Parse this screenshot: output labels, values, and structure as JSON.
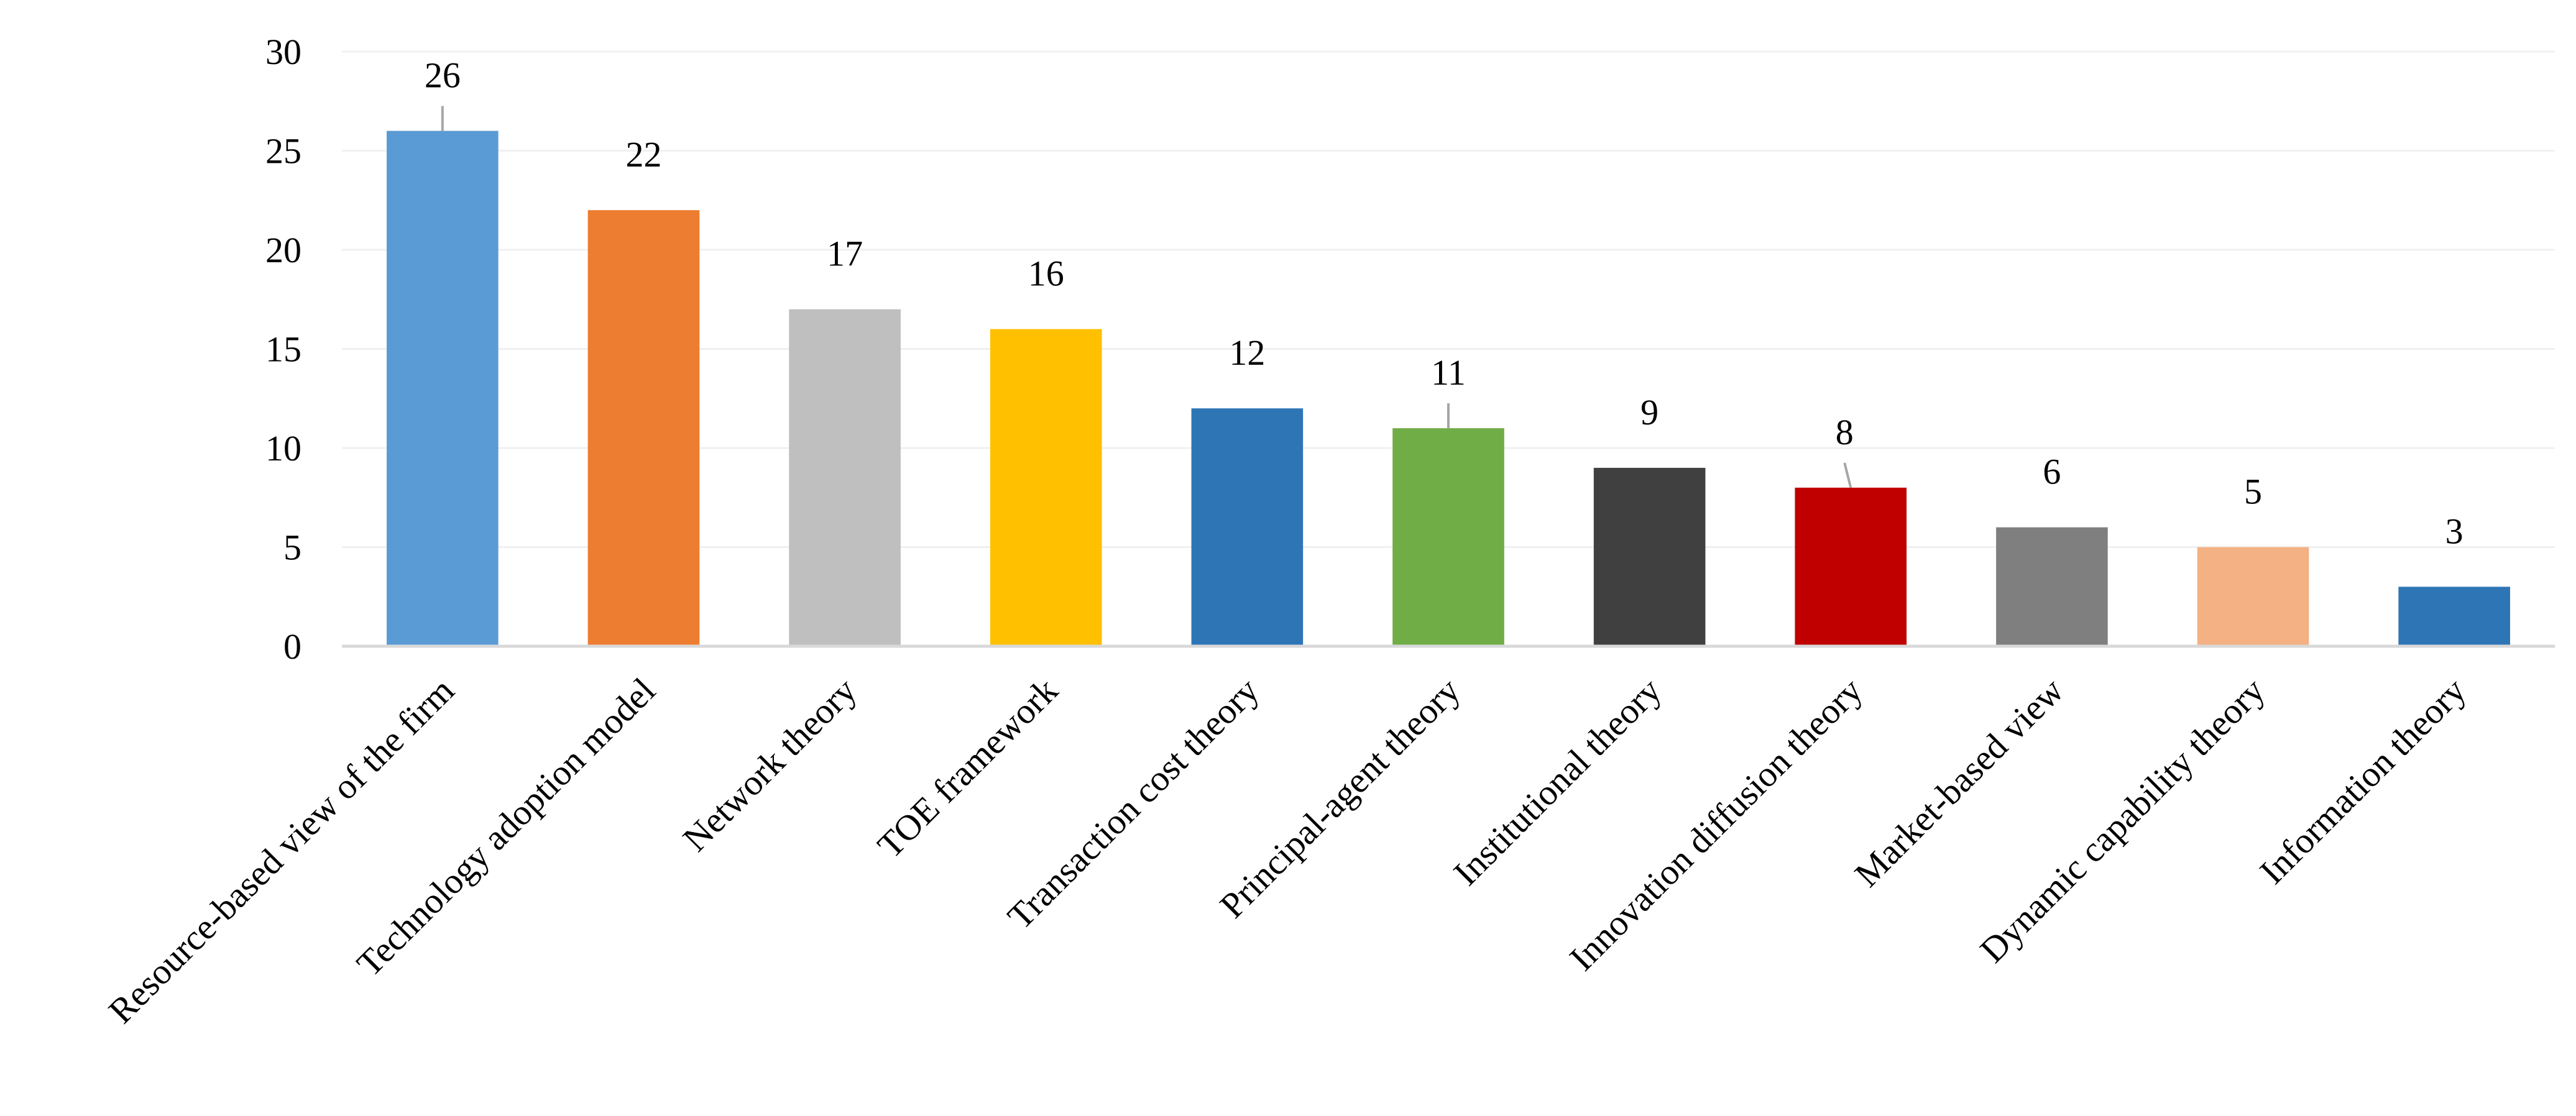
{
  "chart_data": {
    "type": "bar",
    "categories": [
      "Resource-based view of the firm",
      "Technology adoption model",
      "Network theory",
      "TOE framework",
      "Transaction cost theory",
      "Principal-agent theory",
      "Institutional theory",
      "Innovation diffusion theory",
      "Market-based view",
      "Dynamic capability theory",
      "Information theory"
    ],
    "values": [
      26,
      22,
      17,
      16,
      12,
      11,
      9,
      8,
      6,
      5,
      3
    ],
    "colors": [
      "#5b9bd5",
      "#ed7d31",
      "#bfbfbf",
      "#ffc000",
      "#2e75b6",
      "#70ad47",
      "#404040",
      "#c00000",
      "#7f7f7f",
      "#f4b183",
      "#2e75b6"
    ],
    "title": "",
    "xlabel": "",
    "ylabel": "",
    "ylim": [
      0,
      30
    ],
    "yticks": [
      0,
      5,
      10,
      15,
      20,
      25,
      30
    ],
    "grid": true,
    "legend": "none"
  }
}
